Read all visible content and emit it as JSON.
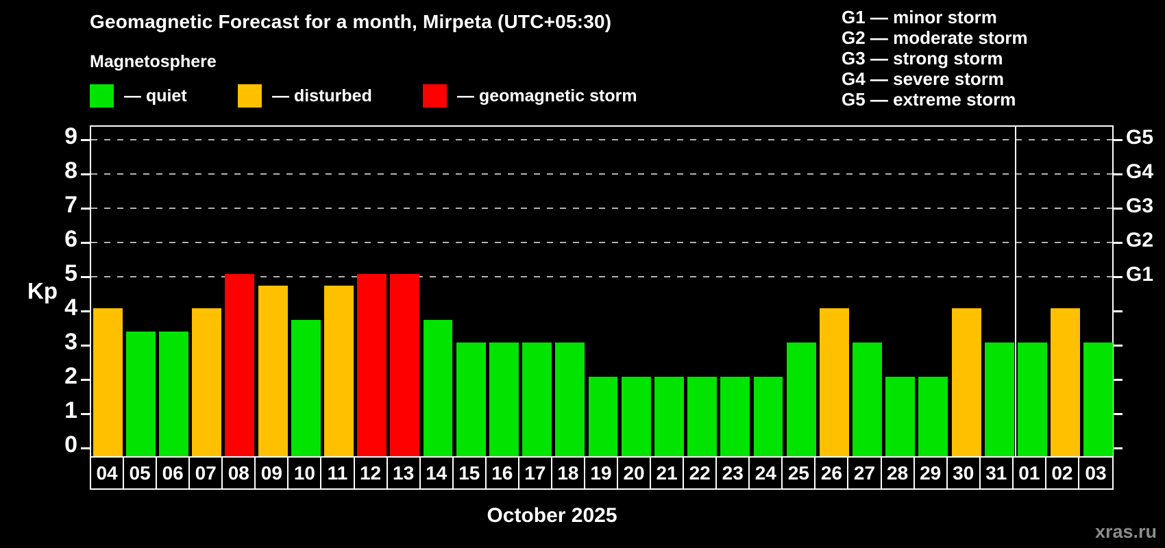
{
  "title": "Geomagnetic Forecast for a month, Mirpeta (UTC+05:30)",
  "subtitle": "Magnetosphere",
  "legend": {
    "items": [
      {
        "label": "— quiet",
        "level": "quiet",
        "color": "#00e400"
      },
      {
        "label": "— disturbed",
        "level": "disturbed",
        "color": "#ffc000"
      },
      {
        "label": "— geomagnetic storm",
        "level": "storm",
        "color": "#ff0000"
      }
    ]
  },
  "storm_scale": {
    "lines": [
      "G1 — minor storm",
      "G2 — moderate storm",
      "G3 — strong storm",
      "G4 — severe storm",
      "G5 — extreme storm"
    ]
  },
  "axis": {
    "kp_label": "Kp"
  },
  "footer": {
    "month_label": "October 2025",
    "watermark": "xras.ru"
  },
  "chart_data": {
    "type": "bar",
    "title": "Geomagnetic Forecast for a month, Mirpeta (UTC+05:30)",
    "ylabel": "Kp",
    "xlabel": "October 2025",
    "categories": [
      "04",
      "05",
      "06",
      "07",
      "08",
      "09",
      "10",
      "11",
      "12",
      "13",
      "14",
      "15",
      "16",
      "17",
      "18",
      "19",
      "20",
      "21",
      "22",
      "23",
      "24",
      "25",
      "26",
      "27",
      "28",
      "29",
      "30",
      "31",
      "01",
      "02",
      "03"
    ],
    "values": [
      4,
      3.33,
      3.33,
      4,
      5,
      4.67,
      3.67,
      4.67,
      5,
      5,
      3.67,
      3,
      3,
      3,
      3,
      2,
      2,
      2,
      2,
      2,
      2,
      3,
      4,
      3,
      2,
      2,
      4,
      3,
      3,
      4,
      3
    ],
    "levels": [
      "disturbed",
      "quiet",
      "quiet",
      "disturbed",
      "storm",
      "disturbed",
      "quiet",
      "disturbed",
      "storm",
      "storm",
      "quiet",
      "quiet",
      "quiet",
      "quiet",
      "quiet",
      "quiet",
      "quiet",
      "quiet",
      "quiet",
      "quiet",
      "quiet",
      "quiet",
      "disturbed",
      "quiet",
      "quiet",
      "quiet",
      "disturbed",
      "quiet",
      "quiet",
      "disturbed",
      "quiet"
    ],
    "colors_by_level": {
      "quiet": "#00e400",
      "disturbed": "#ffc000",
      "storm": "#ff0000"
    },
    "ylim": [
      -0.32,
      9.38
    ],
    "yticks": [
      0,
      1,
      2,
      3,
      4,
      5,
      6,
      7,
      8,
      9
    ],
    "gridline_values": [
      5,
      6,
      7,
      8,
      9
    ],
    "gridline_style": "dashed gray horizontal lines at G-storm levels",
    "right_axis_labels": [
      {
        "value": 5,
        "label": "G1"
      },
      {
        "value": 6,
        "label": "G2"
      },
      {
        "value": 7,
        "label": "G3"
      },
      {
        "value": 8,
        "label": "G4"
      },
      {
        "value": 9,
        "label": "G5"
      }
    ],
    "month_separator_after_index": 27,
    "legend_position": "top-left",
    "background_color": "#000000"
  }
}
